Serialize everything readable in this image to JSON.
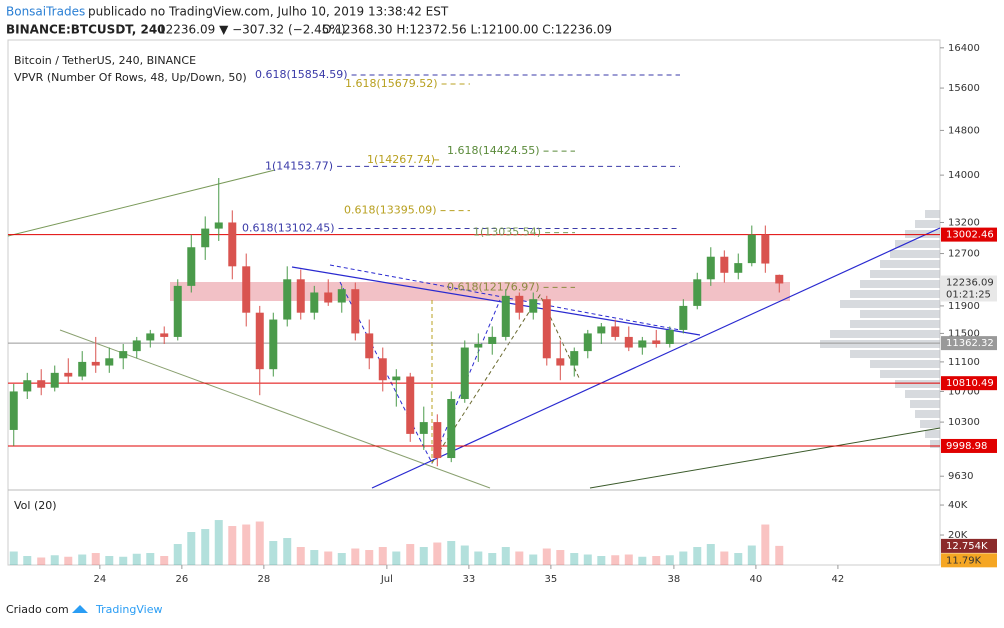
{
  "header": {
    "author": "BonsaiTrades",
    "published": "publicado no TradingView.com, Julho 10, 2019 13:38:42 EST",
    "symbol": "BINANCE:BTCUSDT, 240",
    "last": "12236.09 ▼ −307.32 (−2.45%)",
    "ohlc": "O:12368.30 H:12372.56 L:12100.00 C:12236.09"
  },
  "chart_data": {
    "type": "candlestick",
    "title": "Bitcoin / TetherUS, 240, BINANCE",
    "indicator": "VPVR (Number Of Rows, 48, Up/Down, 50)",
    "volume_title": "Vol (20)",
    "log_scale": true,
    "up_color": "#26a69a",
    "down_color": "#ef5350",
    "candle_up": "#4a9a4a",
    "candle_down": "#d9534f",
    "x": [
      21.9,
      22.23,
      22.57,
      22.9,
      23.23,
      23.57,
      23.9,
      24.23,
      24.57,
      24.9,
      25.23,
      25.57,
      25.9,
      26.23,
      26.57,
      26.9,
      27.23,
      27.57,
      27.9,
      28.23,
      28.57,
      28.9,
      29.23,
      29.57,
      29.9,
      30.23,
      30.57,
      30.9,
      31.23,
      31.57,
      31.9,
      32.23,
      32.57,
      32.9,
      33.23,
      33.57,
      33.9,
      34.23,
      34.57,
      34.9,
      35.23,
      35.57,
      35.9,
      36.23,
      36.57,
      36.9,
      37.23,
      37.57,
      37.9,
      38.23,
      38.57,
      38.9,
      39.23,
      39.57,
      39.9,
      40.23,
      40.57
    ],
    "open": [
      10200,
      10700,
      10850,
      10750,
      10950,
      10900,
      11100,
      11050,
      11150,
      11250,
      11400,
      11500,
      11450,
      12200,
      12800,
      13100,
      13200,
      12500,
      11800,
      11000,
      11700,
      12300,
      11800,
      12100,
      11950,
      12150,
      11500,
      11150,
      10850,
      10900,
      10150,
      10300,
      9850,
      10600,
      11300,
      11350,
      11450,
      12050,
      11800,
      12000,
      11150,
      11050,
      11250,
      11500,
      11600,
      11450,
      11300,
      11400,
      11350,
      11550,
      11900,
      12300,
      12650,
      12400,
      12550,
      13000,
      12368.3
    ],
    "high": [
      10800,
      10950,
      11000,
      11050,
      11150,
      11250,
      11450,
      11300,
      11350,
      11450,
      11550,
      11600,
      12300,
      13000,
      13300,
      13950,
      13400,
      12700,
      11900,
      11800,
      12500,
      12450,
      12200,
      12300,
      12200,
      12250,
      11700,
      11300,
      11000,
      10950,
      10500,
      10400,
      10700,
      11400,
      11500,
      11600,
      12150,
      12100,
      12100,
      12050,
      11400,
      11300,
      11550,
      11650,
      11700,
      11600,
      11450,
      11550,
      11600,
      12000,
      12400,
      12800,
      12750,
      12700,
      13150,
      13150,
      12372.56
    ],
    "low": [
      10000,
      10600,
      10650,
      10700,
      10800,
      10850,
      10950,
      10950,
      11000,
      11150,
      11300,
      11350,
      11400,
      12100,
      12600,
      12900,
      12300,
      11600,
      10650,
      10900,
      11600,
      11700,
      11700,
      11900,
      11800,
      11400,
      11000,
      10700,
      10500,
      10050,
      9950,
      9750,
      9800,
      10550,
      11100,
      11200,
      11400,
      11700,
      11700,
      11050,
      10850,
      10900,
      11150,
      11350,
      11400,
      11250,
      11200,
      11300,
      11300,
      11500,
      11850,
      12200,
      12250,
      12300,
      12500,
      12400,
      12100
    ],
    "close": [
      10700,
      10850,
      10750,
      10950,
      10900,
      11100,
      11050,
      11150,
      11250,
      11400,
      11500,
      11450,
      12200,
      12800,
      13100,
      13200,
      12500,
      11800,
      11000,
      11700,
      12300,
      11800,
      12100,
      11950,
      12150,
      11500,
      11150,
      10850,
      10900,
      10150,
      10300,
      9850,
      10600,
      11300,
      11350,
      11450,
      12050,
      11800,
      12000,
      11150,
      11050,
      11250,
      11500,
      11600,
      11450,
      11300,
      11400,
      11350,
      11550,
      11900,
      12300,
      12650,
      12400,
      12550,
      13000,
      12543.41,
      12236.09
    ],
    "volume": [
      9000,
      6000,
      5000,
      6500,
      5500,
      7000,
      8000,
      6000,
      5500,
      7500,
      8000,
      6000,
      14000,
      22000,
      24000,
      30000,
      26000,
      27000,
      29000,
      16000,
      18000,
      12000,
      10000,
      9000,
      8000,
      11000,
      10000,
      12000,
      9000,
      14000,
      12000,
      15000,
      16000,
      13000,
      9000,
      8000,
      12000,
      9000,
      7000,
      11000,
      10000,
      8000,
      7000,
      6000,
      6500,
      7000,
      5500,
      6000,
      6500,
      9000,
      12000,
      14000,
      9000,
      8000,
      13000,
      27000,
      12754
    ],
    "volume_label": "12.754K",
    "volume_ma": 11790,
    "volume_ma_label": "11.79K",
    "xlim": [
      21.76,
      44.49
    ],
    "xticks": [
      24,
      26,
      28,
      {
        "value": 31,
        "label": "Jul"
      },
      33,
      35,
      38,
      40,
      42
    ],
    "ylim": [
      9490,
      16560
    ],
    "yticks": [
      16400,
      15600,
      14800,
      14000,
      13200,
      12700,
      11900,
      11500,
      11100,
      10700,
      10300,
      9630
    ],
    "volume_ylim": [
      0,
      48700
    ],
    "volume_ticks": [
      {
        "value": 40000,
        "label": "40K"
      },
      {
        "value": 20000,
        "label": "20K"
      }
    ],
    "price_lines": [
      {
        "value": 13002.46,
        "color": "#e00000"
      },
      {
        "value": 11362.32,
        "color": "#999999"
      },
      {
        "value": 10810.49,
        "color": "#e00000"
      },
      {
        "value": 9998.98,
        "color": "#e00000"
      }
    ],
    "current_price": 12236.09,
    "countdown": "01:21:25",
    "annotations": [
      {
        "label": "0.618(15854.59)",
        "value": 15854.59,
        "color": "#3a3aa8"
      },
      {
        "label": "1.618(15679.52)",
        "value": 15679.52,
        "color": "#b8a020"
      },
      {
        "label": "1.618(14424.55)",
        "value": 14424.55,
        "color": "#5a8a3a"
      },
      {
        "label": "1(14267.74)",
        "value": 14267.74,
        "color": "#b8a020"
      },
      {
        "label": "1(14153.77)",
        "value": 14153.77,
        "color": "#3a3aa8"
      },
      {
        "label": "0.618(13395.09)",
        "value": 13395.09,
        "color": "#b8a020"
      },
      {
        "label": "0.618(13102.45)",
        "value": 13102.45,
        "color": "#3a3aa8"
      },
      {
        "label": "1(13035.54)",
        "value": 13035.54,
        "color": "#7a9a5a"
      },
      {
        "label": "0.618(12176.97)",
        "value": 12176.97,
        "color": "#8a8a40"
      }
    ]
  },
  "footer": {
    "made_with": "Criado com",
    "brand": "TradingView"
  }
}
